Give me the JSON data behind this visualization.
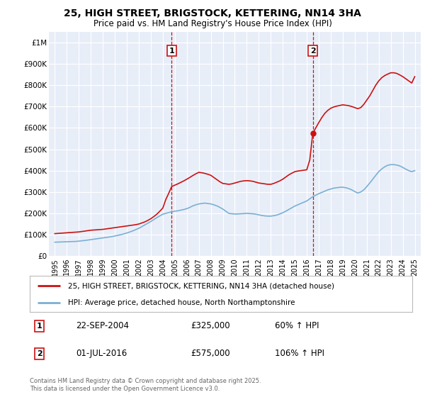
{
  "title": "25, HIGH STREET, BRIGSTOCK, KETTERING, NN14 3HA",
  "subtitle": "Price paid vs. HM Land Registry's House Price Index (HPI)",
  "red_label": "25, HIGH STREET, BRIGSTOCK, KETTERING, NN14 3HA (detached house)",
  "blue_label": "HPI: Average price, detached house, North Northamptonshire",
  "footnote": "Contains HM Land Registry data © Crown copyright and database right 2025.\nThis data is licensed under the Open Government Licence v3.0.",
  "transaction1_date": "22-SEP-2004",
  "transaction1_price": "£325,000",
  "transaction1_hpi": "60% ↑ HPI",
  "transaction1_x": 2004.73,
  "transaction1_y": 325000,
  "transaction2_date": "01-JUL-2016",
  "transaction2_price": "£575,000",
  "transaction2_hpi": "106% ↑ HPI",
  "transaction2_x": 2016.5,
  "transaction2_y": 575000,
  "ylim_max": 1050000,
  "ylim_min": 0,
  "yticks": [
    0,
    100000,
    200000,
    300000,
    400000,
    500000,
    600000,
    700000,
    800000,
    900000,
    1000000
  ],
  "ytick_labels": [
    "£0",
    "£100K",
    "£200K",
    "£300K",
    "£400K",
    "£500K",
    "£600K",
    "£700K",
    "£800K",
    "£900K",
    "£1M"
  ],
  "xlim_min": 1994.5,
  "xlim_max": 2025.5,
  "xticks": [
    1995,
    1996,
    1997,
    1998,
    1999,
    2000,
    2001,
    2002,
    2003,
    2004,
    2005,
    2006,
    2007,
    2008,
    2009,
    2010,
    2011,
    2012,
    2013,
    2014,
    2015,
    2016,
    2017,
    2018,
    2019,
    2020,
    2021,
    2022,
    2023,
    2024,
    2025
  ],
  "background_color": "#e8eef8",
  "grid_color": "#ffffff",
  "red_color": "#cc1111",
  "blue_color": "#7ab0d4",
  "vline_color": "#cc1111",
  "marker_color": "#cc1111",
  "red_data_x": [
    1995.0,
    1995.25,
    1995.5,
    1995.75,
    1996.0,
    1996.25,
    1996.5,
    1996.75,
    1997.0,
    1997.25,
    1997.5,
    1997.75,
    1998.0,
    1998.25,
    1998.5,
    1998.75,
    1999.0,
    1999.25,
    1999.5,
    1999.75,
    2000.0,
    2000.25,
    2000.5,
    2000.75,
    2001.0,
    2001.25,
    2001.5,
    2001.75,
    2002.0,
    2002.25,
    2002.5,
    2002.75,
    2003.0,
    2003.25,
    2003.5,
    2003.75,
    2004.0,
    2004.25,
    2004.5,
    2004.73,
    2005.0,
    2005.25,
    2005.5,
    2005.75,
    2006.0,
    2006.25,
    2006.5,
    2006.75,
    2007.0,
    2007.25,
    2007.5,
    2007.75,
    2008.0,
    2008.25,
    2008.5,
    2008.75,
    2009.0,
    2009.25,
    2009.5,
    2009.75,
    2010.0,
    2010.25,
    2010.5,
    2010.75,
    2011.0,
    2011.25,
    2011.5,
    2011.75,
    2012.0,
    2012.25,
    2012.5,
    2012.75,
    2013.0,
    2013.25,
    2013.5,
    2013.75,
    2014.0,
    2014.25,
    2014.5,
    2014.75,
    2015.0,
    2015.25,
    2015.5,
    2015.75,
    2016.0,
    2016.25,
    2016.5,
    2016.75,
    2017.0,
    2017.25,
    2017.5,
    2017.75,
    2018.0,
    2018.25,
    2018.5,
    2018.75,
    2019.0,
    2019.25,
    2019.5,
    2019.75,
    2020.0,
    2020.25,
    2020.5,
    2020.75,
    2021.0,
    2021.25,
    2021.5,
    2021.75,
    2022.0,
    2022.25,
    2022.5,
    2022.75,
    2023.0,
    2023.25,
    2023.5,
    2023.75,
    2024.0,
    2024.25,
    2024.5,
    2024.75,
    2025.0
  ],
  "red_data_y": [
    105000,
    106000,
    107000,
    108000,
    109000,
    110000,
    111000,
    112000,
    113000,
    115000,
    117000,
    119000,
    121000,
    122000,
    123000,
    124000,
    125000,
    127000,
    129000,
    131000,
    133000,
    135000,
    137000,
    139000,
    141000,
    143000,
    145000,
    147000,
    150000,
    155000,
    160000,
    167000,
    175000,
    185000,
    196000,
    210000,
    225000,
    265000,
    295000,
    325000,
    332000,
    338000,
    345000,
    352000,
    360000,
    368000,
    377000,
    385000,
    392000,
    390000,
    387000,
    383000,
    378000,
    368000,
    358000,
    348000,
    340000,
    338000,
    336000,
    338000,
    342000,
    346000,
    350000,
    352000,
    353000,
    352000,
    350000,
    346000,
    342000,
    340000,
    338000,
    336000,
    336000,
    340000,
    346000,
    352000,
    360000,
    370000,
    380000,
    388000,
    395000,
    398000,
    400000,
    402000,
    404000,
    450000,
    575000,
    600000,
    625000,
    648000,
    668000,
    682000,
    692000,
    698000,
    702000,
    705000,
    708000,
    706000,
    704000,
    700000,
    695000,
    690000,
    695000,
    710000,
    730000,
    750000,
    775000,
    800000,
    820000,
    835000,
    845000,
    852000,
    858000,
    858000,
    855000,
    848000,
    840000,
    830000,
    820000,
    810000,
    840000
  ],
  "blue_data_x": [
    1995.0,
    1995.25,
    1995.5,
    1995.75,
    1996.0,
    1996.25,
    1996.5,
    1996.75,
    1997.0,
    1997.25,
    1997.5,
    1997.75,
    1998.0,
    1998.25,
    1998.5,
    1998.75,
    1999.0,
    1999.25,
    1999.5,
    1999.75,
    2000.0,
    2000.25,
    2000.5,
    2000.75,
    2001.0,
    2001.25,
    2001.5,
    2001.75,
    2002.0,
    2002.25,
    2002.5,
    2002.75,
    2003.0,
    2003.25,
    2003.5,
    2003.75,
    2004.0,
    2004.25,
    2004.5,
    2004.75,
    2005.0,
    2005.25,
    2005.5,
    2005.75,
    2006.0,
    2006.25,
    2006.5,
    2006.75,
    2007.0,
    2007.25,
    2007.5,
    2007.75,
    2008.0,
    2008.25,
    2008.5,
    2008.75,
    2009.0,
    2009.25,
    2009.5,
    2009.75,
    2010.0,
    2010.25,
    2010.5,
    2010.75,
    2011.0,
    2011.25,
    2011.5,
    2011.75,
    2012.0,
    2012.25,
    2012.5,
    2012.75,
    2013.0,
    2013.25,
    2013.5,
    2013.75,
    2014.0,
    2014.25,
    2014.5,
    2014.75,
    2015.0,
    2015.25,
    2015.5,
    2015.75,
    2016.0,
    2016.25,
    2016.5,
    2016.75,
    2017.0,
    2017.25,
    2017.5,
    2017.75,
    2018.0,
    2018.25,
    2018.5,
    2018.75,
    2019.0,
    2019.25,
    2019.5,
    2019.75,
    2020.0,
    2020.25,
    2020.5,
    2020.75,
    2021.0,
    2021.25,
    2021.5,
    2021.75,
    2022.0,
    2022.25,
    2022.5,
    2022.75,
    2023.0,
    2023.25,
    2023.5,
    2023.75,
    2024.0,
    2024.25,
    2024.5,
    2024.75,
    2025.0
  ],
  "blue_data_y": [
    65000,
    65500,
    66000,
    66500,
    67000,
    67500,
    68000,
    68500,
    70000,
    71500,
    73000,
    75000,
    77000,
    79000,
    81000,
    83000,
    85000,
    87000,
    89000,
    91000,
    94000,
    97000,
    100000,
    104000,
    108000,
    113000,
    118000,
    124000,
    130000,
    138000,
    146000,
    154000,
    162000,
    171000,
    180000,
    188000,
    196000,
    200000,
    204000,
    207000,
    210000,
    212000,
    215000,
    218000,
    222000,
    228000,
    235000,
    240000,
    244000,
    246000,
    248000,
    246000,
    244000,
    240000,
    235000,
    228000,
    220000,
    210000,
    200000,
    198000,
    197000,
    197000,
    198000,
    199000,
    200000,
    199000,
    198000,
    196000,
    193000,
    190000,
    188000,
    187000,
    187000,
    189000,
    192000,
    197000,
    203000,
    210000,
    218000,
    226000,
    234000,
    240000,
    246000,
    252000,
    258000,
    268000,
    278000,
    285000,
    292000,
    298000,
    304000,
    310000,
    314000,
    318000,
    320000,
    322000,
    322000,
    320000,
    316000,
    310000,
    302000,
    295000,
    300000,
    310000,
    325000,
    342000,
    360000,
    378000,
    395000,
    408000,
    418000,
    425000,
    428000,
    428000,
    426000,
    422000,
    415000,
    407000,
    400000,
    395000,
    400000
  ]
}
